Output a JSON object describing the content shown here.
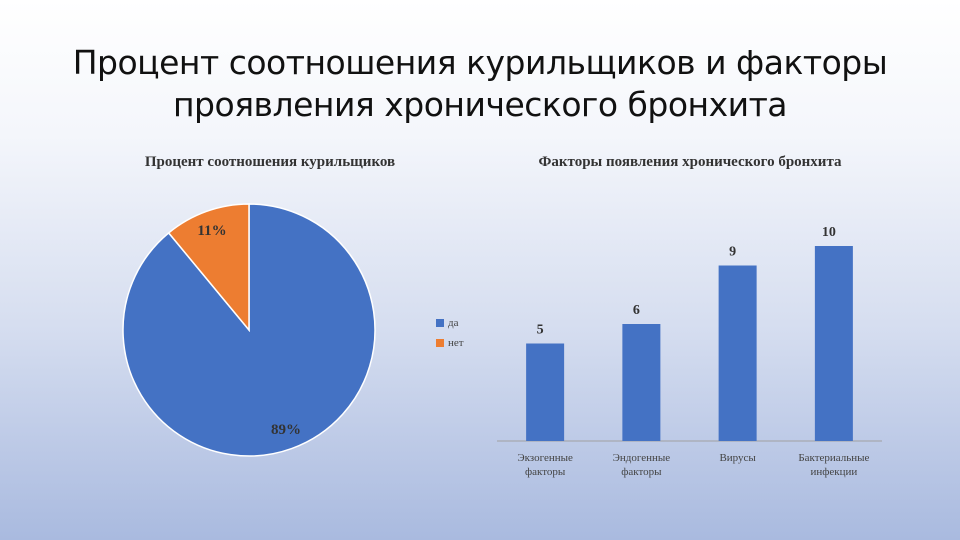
{
  "slide": {
    "title_line1": "Процент соотношения курильщиков и факторы",
    "title_line2": "проявления хронического бронхита"
  },
  "chart_data": [
    {
      "type": "pie",
      "title": "Процент соотношения курильщиков",
      "slices": [
        {
          "label": "да",
          "value": 89,
          "data_label": "89%",
          "color": "#4472C4"
        },
        {
          "label": "нет",
          "value": 11,
          "data_label": "11%",
          "color": "#ED7D31"
        }
      ],
      "legend": "right"
    },
    {
      "type": "bar",
      "title": "Факторы появления хронического бронхита",
      "categories": [
        "Экзогенные факторы",
        "Эндогенные факторы",
        "Вирусы",
        "Бактериальные инфекции"
      ],
      "values": [
        5,
        6,
        9,
        10
      ],
      "data_labels": [
        "5",
        "6",
        "9",
        "10"
      ],
      "color": "#4472C4",
      "ylim": [
        0,
        10
      ],
      "grid": false
    }
  ]
}
